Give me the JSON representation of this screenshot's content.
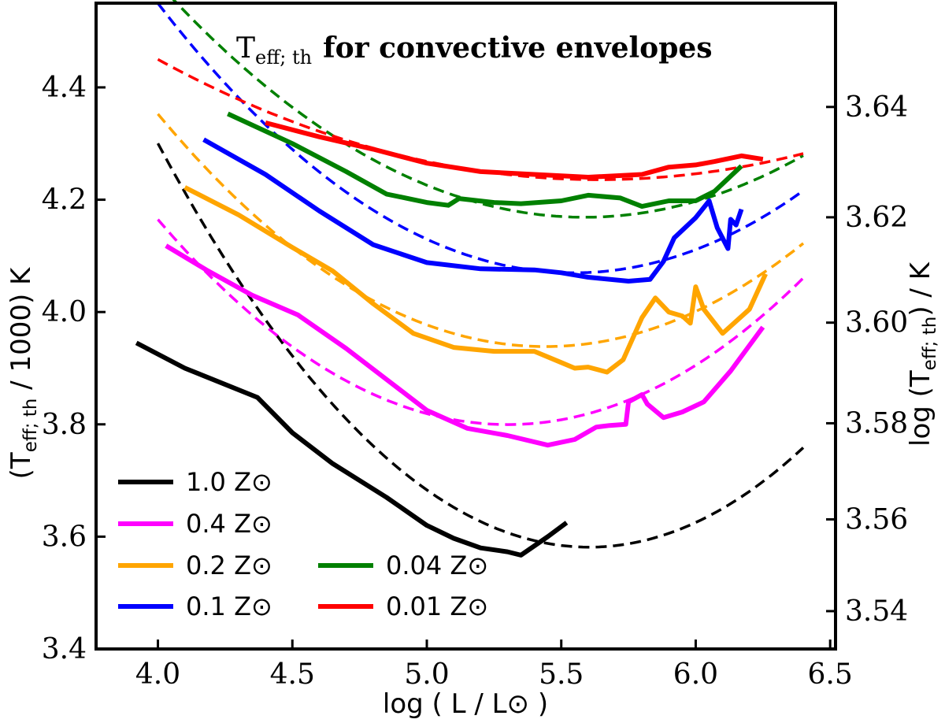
{
  "chart_data": {
    "type": "line",
    "title_prefix": "T",
    "title_sub": "eff; th",
    "title_rest": "for convective envelopes",
    "xlabel": "log ( L / L⊙ )",
    "ylabel_left_prefix": "(T",
    "ylabel_left_sub": "eff; th",
    "ylabel_left_rest": " / 1000) K",
    "ylabel_right_prefix": "log (T",
    "ylabel_right_sub": "eff; th",
    "ylabel_right_rest": ") / K",
    "xlim": [
      3.77,
      6.52
    ],
    "ylim": [
      3.4,
      4.55
    ],
    "x_ticks": [
      "4.0",
      "4.5",
      "5.0",
      "5.5",
      "6.0",
      "6.5"
    ],
    "y_ticks": [
      "3.4",
      "3.6",
      "3.8",
      "4.0",
      "4.2",
      "4.4"
    ],
    "y2_ticks": [
      "3.54",
      "3.56",
      "3.58",
      "3.60",
      "3.62",
      "3.64"
    ],
    "grid": false,
    "legend_position": "bottom-left",
    "series": [
      {
        "name": "1.0 Z⊙",
        "color": "#000000",
        "x": [
          3.92,
          4.1,
          4.37,
          4.5,
          4.65,
          4.85,
          5.0,
          5.1,
          5.2,
          5.3,
          5.35,
          5.45,
          5.52
        ],
        "y": [
          3.945,
          3.9,
          3.848,
          3.785,
          3.73,
          3.67,
          3.62,
          3.597,
          3.58,
          3.573,
          3.567,
          3.6,
          3.625
        ]
      },
      {
        "name": "0.4 Z⊙",
        "color": "#ff00ff",
        "x": [
          4.03,
          4.18,
          4.35,
          4.52,
          4.7,
          4.85,
          5.0,
          5.15,
          5.3,
          5.45,
          5.55,
          5.63,
          5.68,
          5.74,
          5.75,
          5.8,
          5.82,
          5.88,
          5.95,
          6.03,
          6.13,
          6.25
        ],
        "y": [
          4.118,
          4.075,
          4.03,
          3.995,
          3.935,
          3.88,
          3.825,
          3.793,
          3.78,
          3.763,
          3.773,
          3.795,
          3.798,
          3.8,
          3.84,
          3.853,
          3.836,
          3.812,
          3.822,
          3.84,
          3.895,
          3.973
        ]
      },
      {
        "name": "0.2 Z⊙",
        "color": "#ffa500",
        "x": [
          4.1,
          4.3,
          4.5,
          4.65,
          4.8,
          4.95,
          5.1,
          5.25,
          5.4,
          5.5,
          5.55,
          5.6,
          5.67,
          5.73,
          5.8,
          5.85,
          5.9,
          5.95,
          5.98,
          6.0,
          6.03,
          6.1,
          6.2,
          6.26
        ],
        "y": [
          4.222,
          4.173,
          4.115,
          4.073,
          4.015,
          3.962,
          3.937,
          3.93,
          3.93,
          3.91,
          3.9,
          3.902,
          3.893,
          3.915,
          3.99,
          4.025,
          4.0,
          3.993,
          3.98,
          4.045,
          4.005,
          3.962,
          4.005,
          4.068
        ]
      },
      {
        "name": "0.1 Z⊙",
        "color": "#0000ff",
        "x": [
          4.17,
          4.4,
          4.6,
          4.8,
          5.0,
          5.2,
          5.4,
          5.5,
          5.6,
          5.75,
          5.83,
          5.88,
          5.92,
          6.0,
          6.05,
          6.08,
          6.12,
          6.13,
          6.15,
          6.17
        ],
        "y": [
          4.307,
          4.245,
          4.18,
          4.12,
          4.088,
          4.077,
          4.075,
          4.07,
          4.062,
          4.055,
          4.058,
          4.09,
          4.132,
          4.168,
          4.198,
          4.15,
          4.113,
          4.165,
          4.155,
          4.183
        ]
      },
      {
        "name": "0.04 Z⊙",
        "color": "#008000",
        "x": [
          4.26,
          4.5,
          4.7,
          4.85,
          5.0,
          5.08,
          5.12,
          5.25,
          5.35,
          5.5,
          5.6,
          5.72,
          5.8,
          5.9,
          6.0,
          6.07,
          6.17
        ],
        "y": [
          4.353,
          4.3,
          4.25,
          4.21,
          4.195,
          4.19,
          4.202,
          4.195,
          4.193,
          4.198,
          4.208,
          4.203,
          4.188,
          4.198,
          4.198,
          4.215,
          4.26
        ]
      },
      {
        "name": "0.01 Z⊙",
        "color": "#ff0000",
        "x": [
          4.4,
          4.6,
          4.8,
          5.0,
          5.2,
          5.4,
          5.6,
          5.8,
          5.9,
          6.0,
          6.07,
          6.17,
          6.25
        ],
        "y": [
          4.337,
          4.312,
          4.29,
          4.265,
          4.25,
          4.245,
          4.24,
          4.245,
          4.258,
          4.262,
          4.268,
          4.278,
          4.272
        ]
      }
    ],
    "fits": [
      {
        "color": "#000000",
        "coeffs": [
          0.2795,
          -3.1325,
          12.3582
        ]
      },
      {
        "color": "#ff00ff",
        "coeffs": [
          0.2159,
          -2.2888,
          9.8656
        ]
      },
      {
        "color": "#ffa500",
        "coeffs": [
          0.1996,
          -2.1718,
          9.8462
        ]
      },
      {
        "color": "#0000ff",
        "coeffs": [
          0.2007,
          -2.2263,
          10.2437
        ]
      },
      {
        "color": "#008000",
        "coeffs": [
          0.1659,
          -1.8535,
          9.3458
        ]
      },
      {
        "color": "#ff0000",
        "coeffs": [
          0.0798,
          -0.8998,
          6.7722
        ]
      }
    ],
    "fit_range": [
      4.0,
      6.4
    ]
  }
}
